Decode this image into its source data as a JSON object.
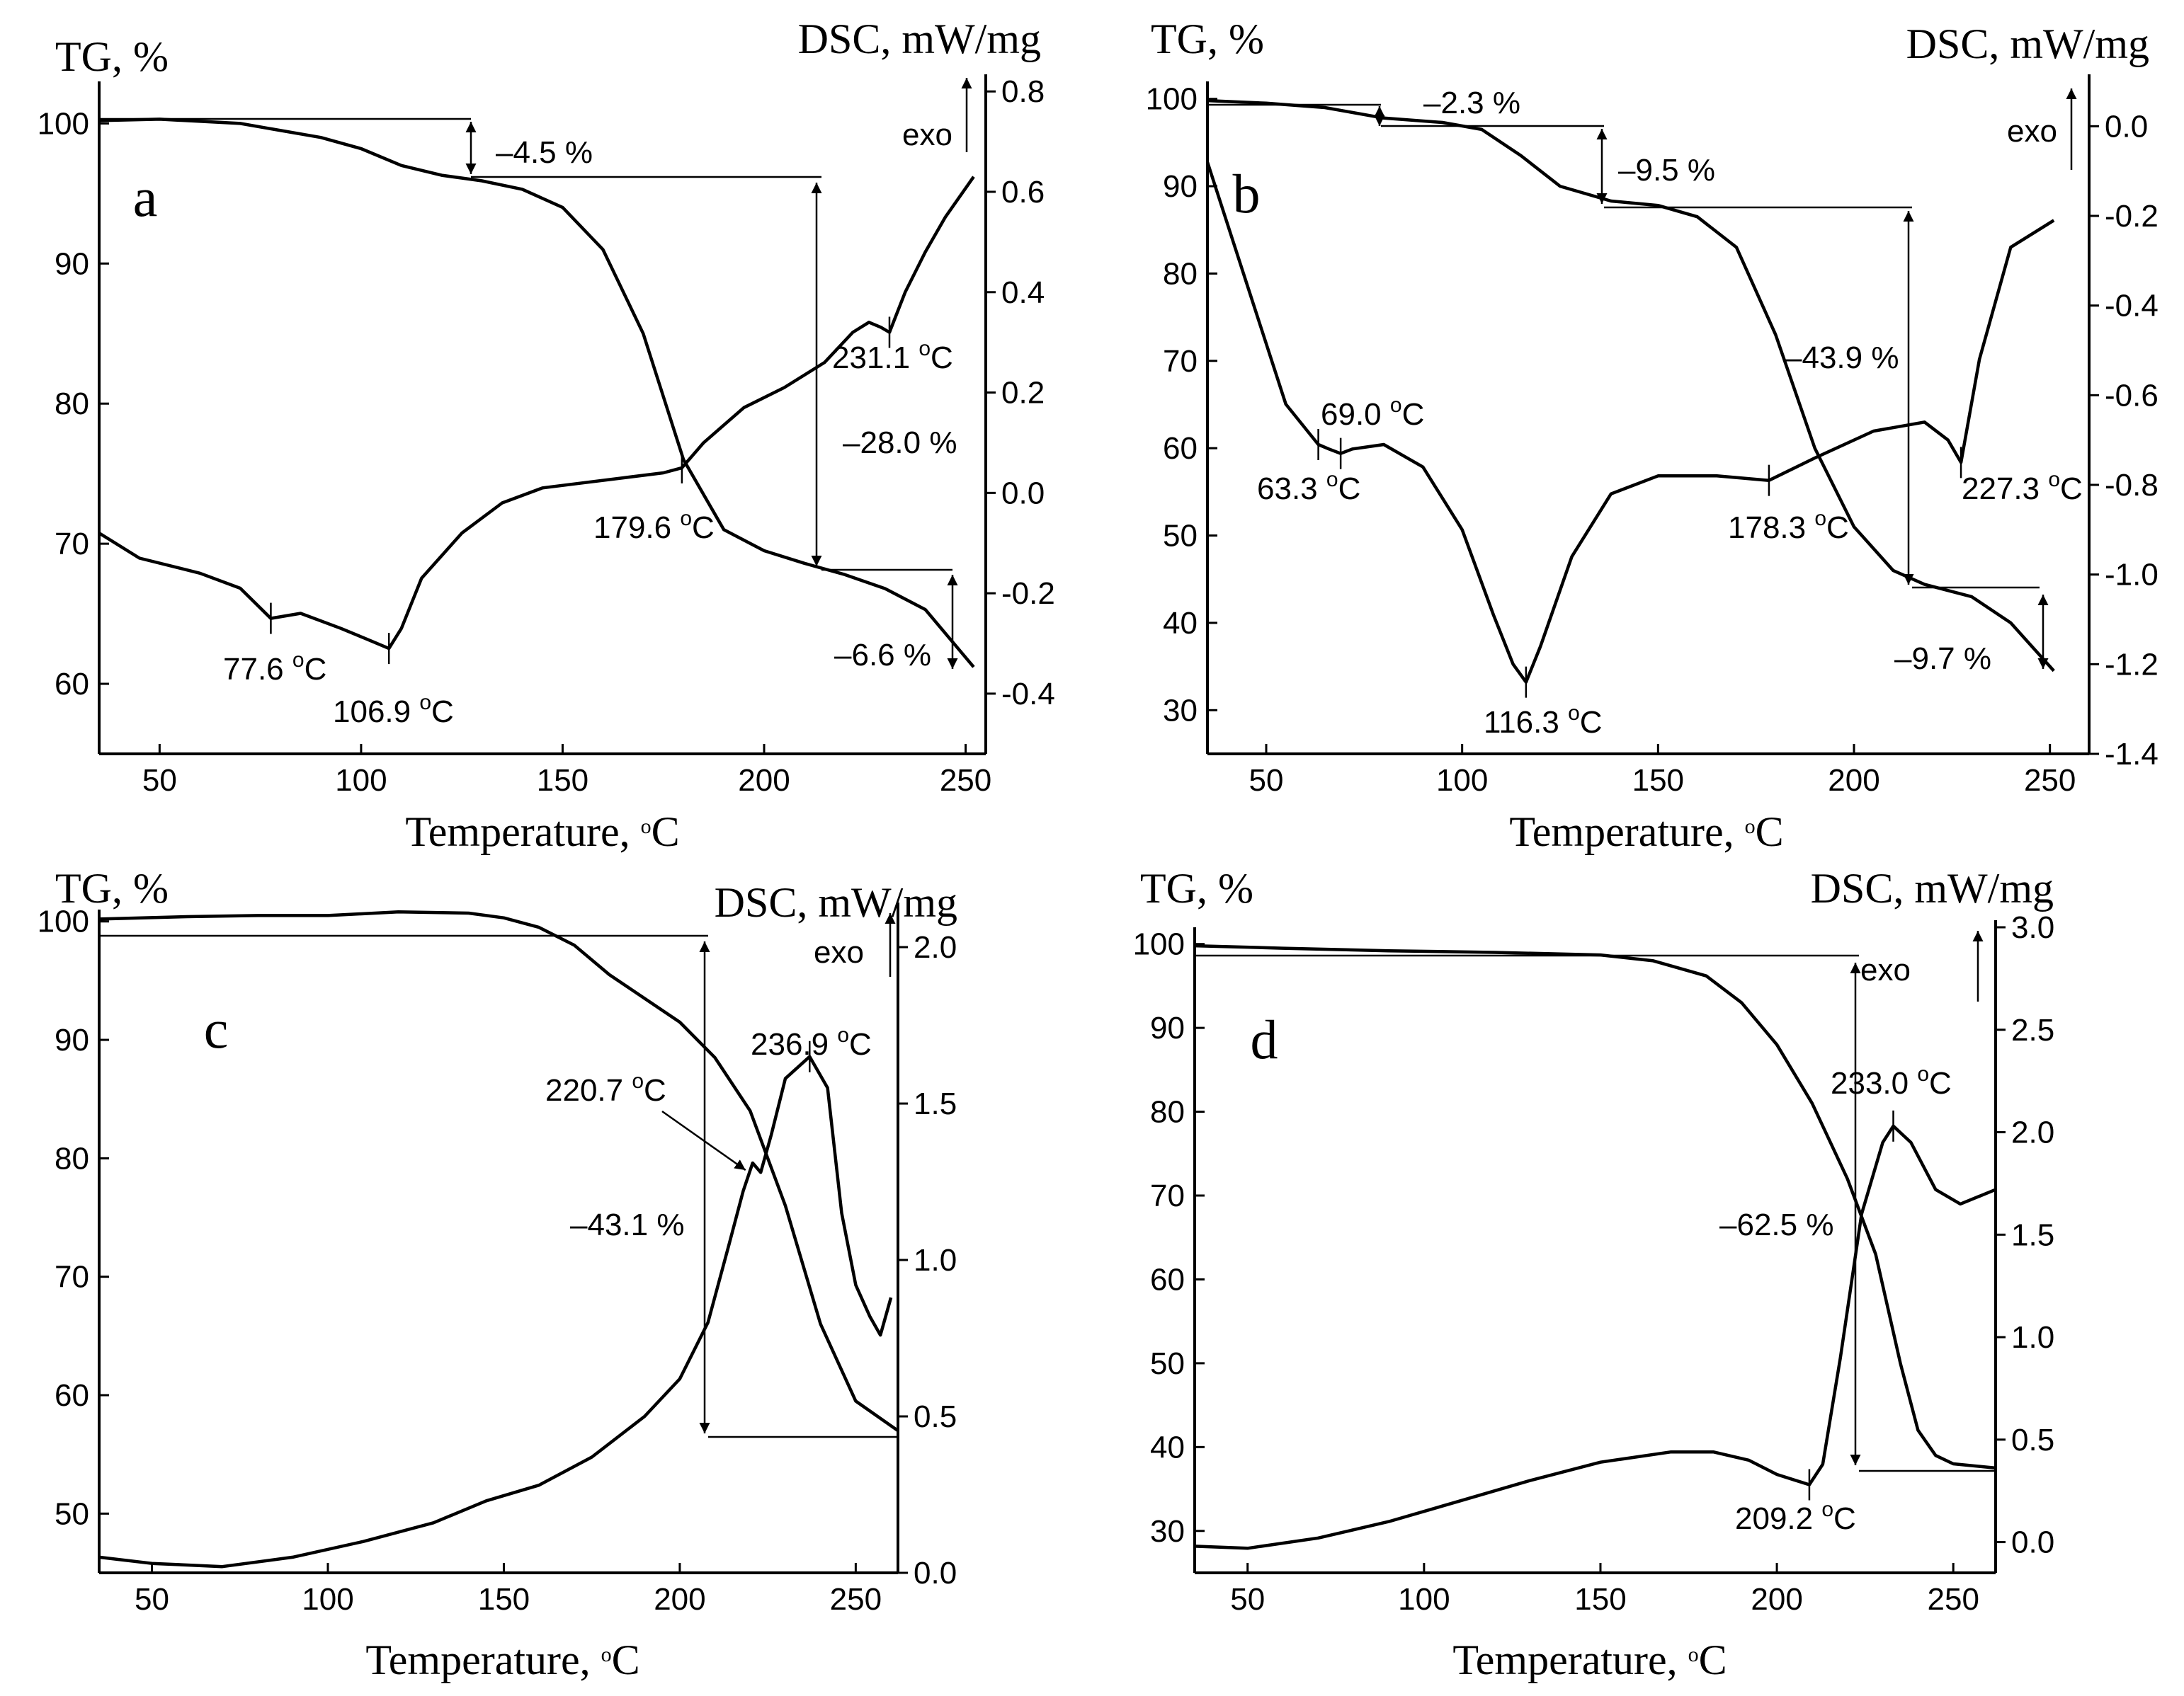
{
  "chart_data": [
    {
      "type": "line",
      "panel": "a",
      "xlabel": "Temperature, °C",
      "ylabel_left": "TG, %",
      "ylabel_right": "DSC, mW/mg",
      "exo_label": "exo",
      "xlim": [
        35,
        255
      ],
      "ylim_left": [
        55,
        103
      ],
      "ylim_right": [
        -0.52,
        0.82
      ],
      "x_ticks": [
        50,
        100,
        150,
        200,
        250
      ],
      "y_left_ticks": [
        60,
        70,
        80,
        90,
        100
      ],
      "y_right_ticks": [
        -0.4,
        -0.2,
        0.0,
        0.2,
        0.4,
        0.6,
        0.8
      ],
      "series": [
        {
          "name": "TG",
          "axis": "left",
          "x": [
            35,
            50,
            70,
            90,
            100,
            110,
            120,
            130,
            140,
            150,
            160,
            170,
            180,
            190,
            200,
            210,
            220,
            230,
            240,
            252
          ],
          "y": [
            100.2,
            100.3,
            100.0,
            99.0,
            98.2,
            97.0,
            96.3,
            95.9,
            95.3,
            94.0,
            91.0,
            85.0,
            76.0,
            71.0,
            69.5,
            68.6,
            67.8,
            66.8,
            65.3,
            61.2
          ]
        },
        {
          "name": "DSC",
          "axis": "right",
          "x": [
            35,
            45,
            60,
            70,
            77.6,
            85,
            95,
            101,
            106.9,
            110,
            115,
            125,
            135,
            145,
            155,
            165,
            175,
            179.6,
            185,
            195,
            205,
            215,
            222,
            226,
            229,
            231.1,
            235,
            240,
            245,
            252
          ],
          "y": [
            -0.08,
            -0.13,
            -0.16,
            -0.19,
            -0.25,
            -0.24,
            -0.27,
            -0.29,
            -0.31,
            -0.27,
            -0.17,
            -0.08,
            -0.02,
            0.01,
            0.02,
            0.03,
            0.04,
            0.05,
            0.1,
            0.17,
            0.21,
            0.26,
            0.32,
            0.34,
            0.33,
            0.32,
            0.4,
            0.48,
            0.55,
            0.63
          ]
        }
      ],
      "annotations": {
        "peaks": [
          "77.6 °C",
          "106.9 °C",
          "179.6 °C",
          "231.1 °C"
        ],
        "mass_losses": [
          "–4.5 %",
          "–28.0 %",
          "–6.6 %"
        ]
      }
    },
    {
      "type": "line",
      "panel": "b",
      "xlabel": "Temperature, °C",
      "ylabel_left": "TG, %",
      "ylabel_right": "DSC, mW/mg",
      "exo_label": "exo",
      "xlim": [
        35,
        260
      ],
      "ylim_left": [
        25,
        102
      ],
      "ylim_right": [
        -1.4,
        0.1
      ],
      "x_ticks": [
        50,
        100,
        150,
        200,
        250
      ],
      "y_left_ticks": [
        30,
        40,
        50,
        60,
        70,
        80,
        90,
        100
      ],
      "y_right_ticks": [
        -1.4,
        -1.2,
        -1.0,
        -0.8,
        -0.6,
        -0.4,
        -0.2,
        0.0
      ],
      "series": [
        {
          "name": "TG",
          "axis": "left",
          "x": [
            35,
            50,
            65,
            80,
            95,
            105,
            115,
            125,
            138,
            150,
            160,
            170,
            180,
            190,
            200,
            210,
            218,
            230,
            240,
            251
          ],
          "y": [
            99.8,
            99.5,
            99.0,
            97.8,
            97.3,
            96.5,
            93.5,
            90.0,
            88.3,
            87.8,
            86.5,
            83.0,
            73.0,
            60.0,
            51.0,
            46.0,
            44.4,
            43.0,
            40.0,
            34.5
          ]
        },
        {
          "name": "DSC",
          "axis": "right",
          "x": [
            35,
            45,
            55,
            63.3,
            66,
            69.0,
            72,
            80,
            90,
            100,
            108,
            113,
            116.3,
            120,
            128,
            138,
            150,
            165,
            178.3,
            190,
            205,
            218,
            224,
            227.3,
            232,
            240,
            251
          ],
          "y": [
            -0.08,
            -0.35,
            -0.62,
            -0.71,
            -0.72,
            -0.73,
            -0.72,
            -0.71,
            -0.76,
            -0.9,
            -1.09,
            -1.2,
            -1.24,
            -1.16,
            -0.96,
            -0.82,
            -0.78,
            -0.78,
            -0.79,
            -0.74,
            -0.68,
            -0.66,
            -0.7,
            -0.75,
            -0.52,
            -0.27,
            -0.21
          ]
        }
      ],
      "annotations": {
        "peaks": [
          "63.3 °C",
          "69.0 °C",
          "116.3 °C",
          "178.3 °C",
          "227.3 °C"
        ],
        "mass_losses": [
          "–2.3 %",
          "–9.5 %",
          "–43.9 %",
          "–9.7 %"
        ]
      }
    },
    {
      "type": "line",
      "panel": "c",
      "xlabel": "Temperature, °C",
      "ylabel_left": "TG, %",
      "ylabel_right": "DSC, mW/mg",
      "exo_label": "exo",
      "xlim": [
        35,
        262
      ],
      "ylim_left": [
        45,
        101
      ],
      "ylim_right": [
        0,
        2.12
      ],
      "x_ticks": [
        50,
        100,
        150,
        200,
        250
      ],
      "y_left_ticks": [
        50,
        60,
        70,
        80,
        90,
        100
      ],
      "y_right_ticks": [
        0.0,
        0.5,
        1.0,
        1.5,
        2.0
      ],
      "series": [
        {
          "name": "TG",
          "axis": "left",
          "x": [
            35,
            60,
            80,
            100,
            120,
            140,
            150,
            160,
            170,
            180,
            190,
            200,
            210,
            220,
            230,
            240,
            250,
            262
          ],
          "y": [
            100.2,
            100.4,
            100.5,
            100.5,
            100.8,
            100.7,
            100.3,
            99.5,
            98.0,
            95.5,
            93.5,
            91.5,
            88.5,
            84.0,
            76.0,
            66.0,
            59.5,
            57.0
          ]
        },
        {
          "name": "DSC",
          "axis": "right",
          "x": [
            35,
            50,
            70,
            90,
            110,
            130,
            145,
            160,
            175,
            190,
            200,
            208,
            214,
            218,
            220.7,
            223,
            226,
            230,
            236.9,
            242,
            246,
            250,
            254,
            257,
            260
          ],
          "y": [
            0.05,
            0.03,
            0.02,
            0.05,
            0.1,
            0.16,
            0.23,
            0.28,
            0.37,
            0.5,
            0.62,
            0.8,
            1.05,
            1.22,
            1.31,
            1.28,
            1.4,
            1.58,
            1.65,
            1.55,
            1.15,
            0.92,
            0.82,
            0.76,
            0.88
          ]
        }
      ],
      "annotations": {
        "peaks": [
          "220.7 °C",
          "236.9 °C"
        ],
        "mass_losses": [
          "–43.1 %"
        ]
      }
    },
    {
      "type": "line",
      "panel": "d",
      "xlabel": "Temperature, °C",
      "ylabel_left": "TG, %",
      "ylabel_right": "DSC, mW/mg",
      "exo_label": "exo",
      "xlim": [
        35,
        262
      ],
      "ylim_left": [
        25,
        102
      ],
      "ylim_right": [
        -0.15,
        3.0
      ],
      "x_ticks": [
        50,
        100,
        150,
        200,
        250
      ],
      "y_left_ticks": [
        30,
        40,
        50,
        60,
        70,
        80,
        90,
        100
      ],
      "y_right_ticks": [
        0.0,
        0.5,
        1.0,
        1.5,
        2.0,
        2.5,
        3.0
      ],
      "series": [
        {
          "name": "TG",
          "axis": "left",
          "x": [
            35,
            60,
            90,
            120,
            150,
            165,
            180,
            190,
            200,
            210,
            220,
            228,
            235,
            240,
            245,
            250,
            262
          ],
          "y": [
            99.8,
            99.5,
            99.2,
            99.0,
            98.7,
            98.0,
            96.2,
            93.0,
            88.0,
            81.0,
            72.0,
            63.0,
            50.0,
            42.0,
            39.0,
            38.0,
            37.5
          ]
        },
        {
          "name": "DSC",
          "axis": "right",
          "x": [
            35,
            50,
            70,
            90,
            110,
            130,
            150,
            170,
            182,
            192,
            200,
            209.2,
            213,
            218,
            224,
            230,
            233.0,
            238,
            245,
            252,
            262
          ],
          "y": [
            -0.02,
            -0.03,
            0.02,
            0.1,
            0.2,
            0.3,
            0.39,
            0.44,
            0.44,
            0.4,
            0.33,
            0.28,
            0.38,
            0.9,
            1.6,
            1.95,
            2.03,
            1.95,
            1.72,
            1.65,
            1.72
          ]
        }
      ],
      "annotations": {
        "peaks": [
          "209.2 °C",
          "233.0 °C"
        ],
        "mass_losses": [
          "–62.5 %"
        ]
      }
    }
  ]
}
